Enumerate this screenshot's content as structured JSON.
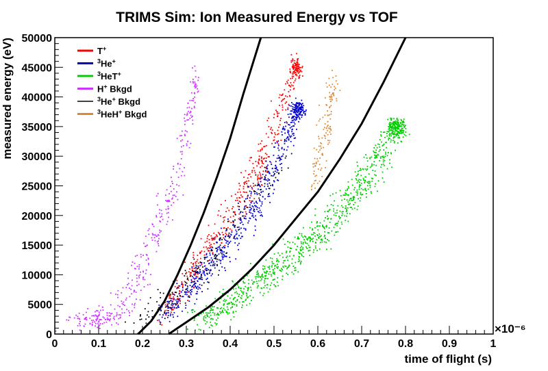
{
  "chart_data": {
    "type": "scatter",
    "title": "TRIMS Sim: Ion Measured Energy vs TOF",
    "xlabel": "time of flight (s)",
    "ylabel": "measured energy (eV)",
    "x_exponent_label": "×10⁻⁶",
    "xlim": [
      0,
      1
    ],
    "ylim": [
      0,
      50000
    ],
    "x_ticks": [
      0,
      0.1,
      0.2,
      0.3,
      0.4,
      0.5,
      0.6,
      0.7,
      0.8,
      0.9,
      1
    ],
    "y_ticks": [
      0,
      5000,
      10000,
      15000,
      20000,
      25000,
      30000,
      35000,
      40000,
      45000,
      50000
    ],
    "x_tick_labels": [
      "0",
      "0.1",
      "0.2",
      "0.3",
      "0.4",
      "0.5",
      "0.6",
      "0.7",
      "0.8",
      "0.9",
      "1"
    ],
    "y_tick_labels": [
      "0",
      "5000",
      "10000",
      "15000",
      "20000",
      "25000",
      "30000",
      "35000",
      "40000",
      "45000",
      "50000"
    ],
    "legend_position": "top-left",
    "series": [
      {
        "name": "T⁺",
        "legend_base": "T",
        "legend_sup": "+",
        "color": "#ff0000",
        "bands": [
          {
            "t": 0.18,
            "x": 0.245,
            "y": 3000,
            "w": 0.03
          },
          {
            "t": 0.4,
            "x": 0.33,
            "y": 12000,
            "w": 0.035
          },
          {
            "t": 0.65,
            "x": 0.42,
            "y": 22000,
            "w": 0.04
          },
          {
            "t": 0.85,
            "x": 0.49,
            "y": 32000,
            "w": 0.035
          },
          {
            "t": 1.0,
            "x": 0.55,
            "y": 45000,
            "w": 0.02
          }
        ]
      },
      {
        "name": "³He⁺",
        "legend_pre": "3",
        "legend_base": "He",
        "legend_sup": "+",
        "color": "#0000cc",
        "bands": [
          {
            "t": 0.18,
            "x": 0.25,
            "y": 3000,
            "w": 0.035
          },
          {
            "t": 0.4,
            "x": 0.34,
            "y": 10000,
            "w": 0.045
          },
          {
            "t": 0.65,
            "x": 0.43,
            "y": 19000,
            "w": 0.045
          },
          {
            "t": 0.85,
            "x": 0.5,
            "y": 28000,
            "w": 0.035
          },
          {
            "t": 1.0,
            "x": 0.555,
            "y": 38000,
            "w": 0.025
          }
        ]
      },
      {
        "name": "³HeT⁺",
        "legend_pre": "3",
        "legend_base": "HeT",
        "legend_sup": "+",
        "color": "#00cc00",
        "bands": [
          {
            "t": 0.18,
            "x": 0.33,
            "y": 2000,
            "w": 0.06
          },
          {
            "t": 0.4,
            "x": 0.47,
            "y": 9000,
            "w": 0.07
          },
          {
            "t": 0.65,
            "x": 0.6,
            "y": 17000,
            "w": 0.07
          },
          {
            "t": 0.85,
            "x": 0.71,
            "y": 26000,
            "w": 0.055
          },
          {
            "t": 1.0,
            "x": 0.78,
            "y": 35000,
            "w": 0.03
          }
        ]
      },
      {
        "name": "H⁺ Bkgd",
        "legend_base": "H",
        "legend_sup": "+",
        "legend_suffix": " Bkgd",
        "color": "#cc33ff",
        "bands": [
          {
            "t": 0.0,
            "x": 0.05,
            "y": 2000,
            "w": 0.07
          },
          {
            "t": 0.3,
            "x": 0.15,
            "y": 3500,
            "w": 0.05
          },
          {
            "t": 0.5,
            "x": 0.22,
            "y": 15000,
            "w": 0.035
          },
          {
            "t": 0.75,
            "x": 0.28,
            "y": 27000,
            "w": 0.03
          },
          {
            "t": 1.0,
            "x": 0.325,
            "y": 44000,
            "w": 0.015
          }
        ]
      },
      {
        "name": "³He⁺ Bkgd",
        "legend_pre": "3",
        "legend_base": "He",
        "legend_sup": "+",
        "legend_suffix": " Bkgd",
        "color": "#000000",
        "bands": [
          {
            "t": 0.0,
            "x": 0.2,
            "y": 2000,
            "w": 0.05
          },
          {
            "t": 0.5,
            "x": 0.35,
            "y": 12000,
            "w": 0.05
          },
          {
            "t": 1.0,
            "x": 0.52,
            "y": 30000,
            "w": 0.04
          }
        ]
      },
      {
        "name": "³HeH⁺ Bkgd",
        "legend_pre": "3",
        "legend_base": "HeH",
        "legend_sup": "+",
        "legend_suffix": " Bkgd",
        "color": "#dd8833",
        "bands": [
          {
            "t": 0.0,
            "x": 0.59,
            "y": 25000,
            "w": 0.025
          },
          {
            "t": 0.5,
            "x": 0.615,
            "y": 34000,
            "w": 0.025
          },
          {
            "t": 1.0,
            "x": 0.64,
            "y": 44000,
            "w": 0.02
          }
        ]
      }
    ],
    "curves": [
      {
        "name": "boundary-1",
        "color": "#000000",
        "x": [
          0.19,
          0.22,
          0.25,
          0.28,
          0.31,
          0.34,
          0.37,
          0.4,
          0.43,
          0.47
        ],
        "y": [
          0,
          2200,
          5500,
          10000,
          15000,
          20500,
          26500,
          33000,
          40500,
          50000
        ]
      },
      {
        "name": "boundary-2",
        "color": "#000000",
        "x": [
          0.26,
          0.3,
          0.35,
          0.4,
          0.45,
          0.5,
          0.55,
          0.6,
          0.65,
          0.7,
          0.75,
          0.8
        ],
        "y": [
          0,
          2000,
          4500,
          7500,
          11000,
          15000,
          19500,
          24000,
          29500,
          35500,
          42500,
          50000
        ]
      }
    ]
  }
}
